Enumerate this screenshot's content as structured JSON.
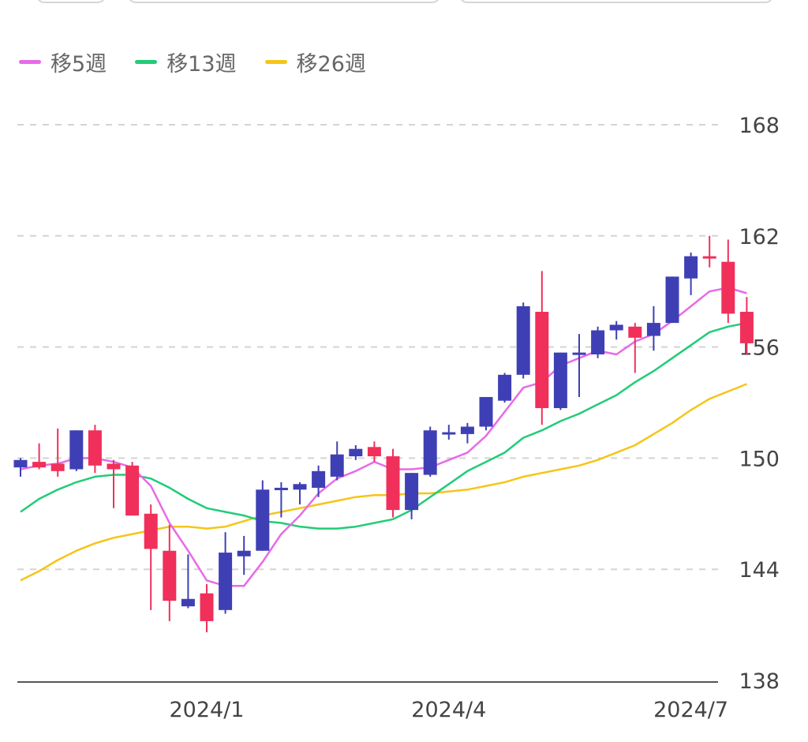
{
  "legend": [
    {
      "label": "移5週",
      "color": "#e86ae8"
    },
    {
      "label": "移13週",
      "color": "#22cc77"
    },
    {
      "label": "移26週",
      "color": "#f5c518"
    }
  ],
  "chart_data": {
    "type": "candlestick",
    "title": "",
    "xlabel": "",
    "ylabel": "",
    "ylim": [
      138,
      168
    ],
    "grid": true,
    "legend_position": "top-left",
    "y_ticks": [
      168,
      162,
      156,
      150,
      144,
      138
    ],
    "x_ticks": [
      {
        "label": "2024/1",
        "index": 10
      },
      {
        "label": "2024/4",
        "index": 23
      },
      {
        "label": "2024/7",
        "index": 36
      }
    ],
    "up_color": "#3f3fb5",
    "down_color": "#f0305a",
    "candles": [
      {
        "o": 149.5,
        "h": 150.0,
        "l": 149.0,
        "c": 149.9
      },
      {
        "o": 149.8,
        "h": 150.8,
        "l": 149.4,
        "c": 149.5
      },
      {
        "o": 149.7,
        "h": 151.6,
        "l": 149.0,
        "c": 149.3
      },
      {
        "o": 149.4,
        "h": 151.5,
        "l": 149.3,
        "c": 151.5
      },
      {
        "o": 151.5,
        "h": 151.8,
        "l": 149.2,
        "c": 149.6
      },
      {
        "o": 149.7,
        "h": 149.9,
        "l": 147.3,
        "c": 149.4
      },
      {
        "o": 149.6,
        "h": 149.8,
        "l": 147.0,
        "c": 146.9
      },
      {
        "o": 147.0,
        "h": 147.5,
        "l": 141.8,
        "c": 145.1
      },
      {
        "o": 145.0,
        "h": 146.4,
        "l": 141.2,
        "c": 142.3
      },
      {
        "o": 142.0,
        "h": 144.8,
        "l": 141.9,
        "c": 142.4
      },
      {
        "o": 142.7,
        "h": 143.2,
        "l": 140.6,
        "c": 141.2
      },
      {
        "o": 141.8,
        "h": 146.0,
        "l": 141.6,
        "c": 144.9
      },
      {
        "o": 144.7,
        "h": 145.8,
        "l": 143.7,
        "c": 145.0
      },
      {
        "o": 145.0,
        "h": 148.8,
        "l": 145.0,
        "c": 148.3
      },
      {
        "o": 148.3,
        "h": 148.7,
        "l": 146.8,
        "c": 148.4
      },
      {
        "o": 148.3,
        "h": 148.7,
        "l": 147.5,
        "c": 148.6
      },
      {
        "o": 148.4,
        "h": 149.6,
        "l": 147.9,
        "c": 149.3
      },
      {
        "o": 149.0,
        "h": 150.9,
        "l": 148.8,
        "c": 150.2
      },
      {
        "o": 150.1,
        "h": 150.7,
        "l": 149.9,
        "c": 150.5
      },
      {
        "o": 150.6,
        "h": 150.9,
        "l": 149.8,
        "c": 150.1
      },
      {
        "o": 150.1,
        "h": 150.5,
        "l": 146.8,
        "c": 147.2
      },
      {
        "o": 147.2,
        "h": 149.2,
        "l": 146.7,
        "c": 149.2
      },
      {
        "o": 149.1,
        "h": 151.7,
        "l": 149.0,
        "c": 151.5
      },
      {
        "o": 151.4,
        "h": 151.8,
        "l": 151.0,
        "c": 151.4
      },
      {
        "o": 151.3,
        "h": 151.9,
        "l": 150.8,
        "c": 151.7
      },
      {
        "o": 151.7,
        "h": 153.3,
        "l": 151.5,
        "c": 153.3
      },
      {
        "o": 153.1,
        "h": 154.6,
        "l": 153.0,
        "c": 154.5
      },
      {
        "o": 154.5,
        "h": 158.4,
        "l": 154.3,
        "c": 158.2
      },
      {
        "o": 157.9,
        "h": 160.1,
        "l": 151.8,
        "c": 152.7
      },
      {
        "o": 152.7,
        "h": 155.7,
        "l": 152.6,
        "c": 155.7
      },
      {
        "o": 155.6,
        "h": 156.7,
        "l": 153.3,
        "c": 155.7
      },
      {
        "o": 155.6,
        "h": 157.1,
        "l": 155.4,
        "c": 156.9
      },
      {
        "o": 156.9,
        "h": 157.4,
        "l": 156.4,
        "c": 157.2
      },
      {
        "o": 157.1,
        "h": 157.3,
        "l": 154.6,
        "c": 156.5
      },
      {
        "o": 156.6,
        "h": 158.2,
        "l": 155.8,
        "c": 157.3
      },
      {
        "o": 157.3,
        "h": 159.8,
        "l": 157.3,
        "c": 159.8
      },
      {
        "o": 159.7,
        "h": 161.1,
        "l": 158.8,
        "c": 160.9
      },
      {
        "o": 160.9,
        "h": 162.0,
        "l": 160.3,
        "c": 160.8
      },
      {
        "o": 160.6,
        "h": 161.8,
        "l": 157.3,
        "c": 157.8
      },
      {
        "o": 157.9,
        "h": 158.7,
        "l": 155.6,
        "c": 156.2
      }
    ],
    "series": [
      {
        "name": "移5週",
        "color": "#e86ae8",
        "values": [
          149.4,
          149.6,
          149.7,
          150.0,
          150.0,
          149.8,
          149.5,
          148.5,
          146.5,
          145.0,
          143.4,
          143.1,
          143.1,
          144.4,
          145.9,
          146.9,
          148.1,
          148.9,
          149.3,
          149.8,
          149.4,
          149.4,
          149.5,
          149.9,
          150.3,
          151.2,
          152.5,
          153.8,
          154.1,
          155.0,
          155.4,
          155.8,
          155.6,
          156.3,
          156.7,
          157.4,
          158.2,
          159.0,
          159.2,
          158.9
        ]
      },
      {
        "name": "移13週",
        "color": "#22cc77",
        "values": [
          147.1,
          147.8,
          148.3,
          148.7,
          149.0,
          149.1,
          149.1,
          148.9,
          148.4,
          147.8,
          147.3,
          147.1,
          146.9,
          146.6,
          146.5,
          146.3,
          146.2,
          146.2,
          146.3,
          146.5,
          146.7,
          147.2,
          147.9,
          148.6,
          149.3,
          149.8,
          150.3,
          151.1,
          151.5,
          152.0,
          152.4,
          152.9,
          153.4,
          154.1,
          154.7,
          155.4,
          156.1,
          156.8,
          157.1,
          157.3
        ]
      },
      {
        "name": "移26週",
        "color": "#f5c518",
        "values": [
          143.4,
          143.9,
          144.5,
          145.0,
          145.4,
          145.7,
          145.9,
          146.1,
          146.3,
          146.3,
          146.2,
          146.3,
          146.6,
          146.9,
          147.1,
          147.3,
          147.5,
          147.7,
          147.9,
          148.0,
          148.0,
          148.1,
          148.1,
          148.2,
          148.3,
          148.5,
          148.7,
          149.0,
          149.2,
          149.4,
          149.6,
          149.9,
          150.3,
          150.7,
          151.3,
          151.9,
          152.6,
          153.2,
          153.6,
          154.0
        ]
      }
    ]
  }
}
